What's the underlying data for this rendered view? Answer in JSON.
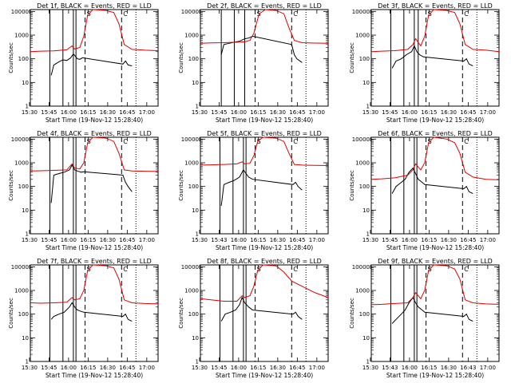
{
  "figure": {
    "background": "#ffffff",
    "events_color": "#000000",
    "lld_color": "#e00000"
  },
  "chart_data": [
    {
      "type": "line",
      "title": "Det 1f, BLACK = Events, RED = LLD",
      "xlabel": "Start Time (19-Nov-12 15:28:40)",
      "ylabel": "Counts/sec",
      "xticklabels": [
        "15:30",
        "15:45",
        "16:00",
        "16:15",
        "16:30",
        "16:45",
        "17:00"
      ],
      "yticklabels": [
        "1",
        "10",
        "100",
        "1000",
        "10000"
      ],
      "xlim_min": [
        2,
        100
      ],
      "ylim": [
        1,
        12000
      ],
      "yscale": "log",
      "solid_markers_min": [
        17,
        27,
        35,
        37
      ],
      "dashed_markers_min": [
        44,
        72
      ],
      "dotted_markers_min": [
        83
      ],
      "markers_label": [
        "S",
        "C"
      ],
      "series": [
        {
          "name": "BLACK = Events",
          "color": "#000000",
          "x": [
            18,
            20,
            24,
            27,
            30,
            33,
            35,
            37,
            38,
            40,
            42,
            73,
            75,
            77,
            80
          ],
          "y": [
            20,
            55,
            75,
            90,
            85,
            110,
            160,
            120,
            100,
            95,
            110,
            60,
            80,
            55,
            50
          ]
        },
        {
          "name": "RED = LLD",
          "color": "#e00000",
          "x": [
            2,
            10,
            20,
            30,
            34,
            36,
            40,
            43,
            46,
            50,
            60,
            66,
            70,
            74,
            80,
            90,
            100
          ],
          "y": [
            200,
            210,
            215,
            240,
            350,
            260,
            300,
            900,
            7000,
            12000,
            11000,
            9000,
            3000,
            400,
            250,
            230,
            220
          ]
        }
      ]
    },
    {
      "type": "line",
      "title": "Det 2f, BLACK = Events, RED = LLD",
      "xlabel": "Start Time (19-Nov-12 15:28:40)",
      "ylabel": "Counts/sec",
      "xticklabels": [
        "15:30",
        "15:45",
        "16:00",
        "16:15",
        "16:30",
        "16:45",
        "17:00"
      ],
      "yticklabels": [
        "1",
        "10",
        "100",
        "1000",
        "10000"
      ],
      "xlim_min": [
        2,
        100
      ],
      "ylim": [
        1,
        12000
      ],
      "yscale": "log",
      "solid_markers_min": [
        18,
        28,
        36
      ],
      "dashed_markers_min": [
        44,
        72
      ],
      "dotted_markers_min": [
        83
      ],
      "markers_label": [
        "S",
        "C"
      ],
      "series": [
        {
          "name": "BLACK = Events",
          "color": "#000000",
          "x": [
            18,
            20,
            24,
            28,
            32,
            36,
            39,
            42,
            72,
            74,
            76,
            80
          ],
          "y": [
            150,
            400,
            450,
            500,
            550,
            700,
            750,
            900,
            400,
            150,
            100,
            70
          ]
        },
        {
          "name": "RED = LLD",
          "color": "#e00000",
          "x": [
            2,
            10,
            20,
            30,
            36,
            40,
            43,
            47,
            52,
            60,
            66,
            70,
            74,
            80,
            90,
            100
          ],
          "y": [
            450,
            470,
            480,
            500,
            520,
            600,
            1200,
            8000,
            12000,
            11000,
            8000,
            2000,
            600,
            480,
            460,
            450
          ]
        }
      ]
    },
    {
      "type": "line",
      "title": "Det 3f, BLACK = Events, RED = LLD",
      "xlabel": "Start Time (19-Nov-12 15:28:40)",
      "ylabel": "Counts/sec",
      "xticklabels": [
        "15:30",
        "15:45",
        "16:00",
        "16:15",
        "16:30",
        "16:45",
        "17:00"
      ],
      "yticklabels": [
        "1",
        "10",
        "100",
        "1000",
        "10000"
      ],
      "xlim_min": [
        2,
        100
      ],
      "ylim": [
        1,
        12000
      ],
      "yscale": "log",
      "solid_markers_min": [
        17,
        27,
        35,
        38
      ],
      "dashed_markers_min": [
        44,
        72
      ],
      "dotted_markers_min": [
        83
      ],
      "markers_label": [
        "S",
        "C"
      ],
      "series": [
        {
          "name": "BLACK = Events",
          "color": "#000000",
          "x": [
            18,
            21,
            25,
            29,
            33,
            35,
            37,
            39,
            42,
            73,
            75,
            77,
            80
          ],
          "y": [
            40,
            80,
            100,
            150,
            200,
            350,
            200,
            150,
            120,
            80,
            100,
            60,
            50
          ]
        },
        {
          "name": "RED = LLD",
          "color": "#e00000",
          "x": [
            2,
            10,
            20,
            30,
            34,
            36,
            40,
            43,
            46,
            50,
            60,
            66,
            70,
            74,
            80,
            90,
            100
          ],
          "y": [
            200,
            210,
            220,
            250,
            400,
            700,
            350,
            900,
            7000,
            12000,
            11000,
            9000,
            3000,
            400,
            250,
            230,
            200
          ]
        }
      ]
    },
    {
      "type": "line",
      "title": "Det 4f, BLACK = Events, RED = LLD",
      "xlabel": "Start Time (19-Nov-12 15:28:40)",
      "ylabel": "Counts/sec",
      "xticklabels": [
        "15:30",
        "15:45",
        "16:00",
        "16:15",
        "16:30",
        "16:45",
        "17:00"
      ],
      "yticklabels": [
        "1",
        "10",
        "100",
        "1000",
        "10000"
      ],
      "xlim_min": [
        2,
        100
      ],
      "ylim": [
        1,
        12000
      ],
      "yscale": "log",
      "solid_markers_min": [
        17,
        27,
        35,
        37
      ],
      "dashed_markers_min": [
        44,
        72
      ],
      "dotted_markers_min": [
        83
      ],
      "markers_label": [
        "S",
        "C"
      ],
      "series": [
        {
          "name": "BLACK = Events",
          "color": "#000000",
          "x": [
            18,
            20,
            24,
            28,
            32,
            34,
            36,
            38,
            41,
            43,
            73,
            75,
            77,
            80
          ],
          "y": [
            20,
            300,
            350,
            400,
            500,
            800,
            500,
            450,
            400,
            420,
            300,
            150,
            100,
            60
          ]
        },
        {
          "name": "RED = LLD",
          "color": "#e00000",
          "x": [
            2,
            10,
            20,
            30,
            34,
            36,
            40,
            43,
            46,
            50,
            60,
            66,
            70,
            74,
            80,
            90,
            100
          ],
          "y": [
            450,
            460,
            480,
            500,
            900,
            600,
            550,
            1000,
            7000,
            12000,
            11000,
            8000,
            2500,
            500,
            450,
            440,
            430
          ]
        }
      ]
    },
    {
      "type": "line",
      "title": "Det 5f, BLACK = Events, RED = LLD",
      "xlabel": "Start Time (19-Nov-12 15:28:40)",
      "ylabel": "Counts/sec",
      "xticklabels": [
        "15:30",
        "15:43",
        "16:00",
        "16:15",
        "16:30",
        "16:45",
        "17:00"
      ],
      "yticklabels": [
        "1",
        "10",
        "100",
        "1000",
        "10000"
      ],
      "xlim_min": [
        2,
        100
      ],
      "ylim": [
        1,
        12000
      ],
      "yscale": "log",
      "solid_markers_min": [
        17,
        27,
        35,
        37
      ],
      "dashed_markers_min": [
        44,
        72
      ],
      "dotted_markers_min": [
        83
      ],
      "markers_label": [
        "S",
        "C"
      ],
      "series": [
        {
          "name": "BLACK = Events",
          "color": "#000000",
          "x": [
            18,
            20,
            24,
            28,
            32,
            35,
            37,
            39,
            42,
            73,
            75,
            77,
            80
          ],
          "y": [
            15,
            120,
            150,
            180,
            250,
            500,
            350,
            250,
            200,
            120,
            150,
            100,
            70
          ]
        },
        {
          "name": "RED = LLD",
          "color": "#e00000",
          "x": [
            2,
            10,
            20,
            30,
            34,
            36,
            40,
            43,
            46,
            50,
            60,
            66,
            70,
            74,
            80,
            90,
            100
          ],
          "y": [
            800,
            820,
            850,
            900,
            1100,
            900,
            950,
            2000,
            8000,
            12000,
            11000,
            8000,
            2500,
            850,
            800,
            780,
            760
          ]
        }
      ]
    },
    {
      "type": "line",
      "title": "Det 6f, BLACK = Events, RED = LLD",
      "xlabel": "Start Time (19-Nov-12 15:28:40)",
      "ylabel": "Counts/sec",
      "xticklabels": [
        "15:30",
        "15:45",
        "16:00",
        "16:15",
        "16:30",
        "16:45",
        "17:00"
      ],
      "yticklabels": [
        "1",
        "10",
        "100",
        "1000",
        "10000"
      ],
      "xlim_min": [
        2,
        100
      ],
      "ylim": [
        1,
        12000
      ],
      "yscale": "log",
      "solid_markers_min": [
        17,
        27,
        35,
        37
      ],
      "dashed_markers_min": [
        44,
        72
      ],
      "dotted_markers_min": [
        83
      ],
      "markers_label": [
        "S",
        "C"
      ],
      "series": [
        {
          "name": "BLACK = Events",
          "color": "#000000",
          "x": [
            18,
            21,
            25,
            28,
            31,
            34,
            36,
            38,
            41,
            43,
            73,
            75,
            77,
            80
          ],
          "y": [
            50,
            100,
            150,
            200,
            400,
            600,
            350,
            200,
            150,
            120,
            80,
            100,
            60,
            50
          ]
        },
        {
          "name": "RED = LLD",
          "color": "#e00000",
          "x": [
            2,
            10,
            20,
            30,
            34,
            36,
            40,
            43,
            46,
            50,
            60,
            66,
            70,
            74,
            80,
            90,
            100
          ],
          "y": [
            200,
            210,
            230,
            300,
            500,
            900,
            500,
            1000,
            7000,
            12000,
            10000,
            7000,
            2500,
            400,
            250,
            200,
            190
          ]
        }
      ]
    },
    {
      "type": "line",
      "title": "Det 7f, BLACK = Events, RED = LLD",
      "xlabel": "Start Time (19-Nov-12 15:28:40)",
      "ylabel": "Counts/sec",
      "xticklabels": [
        "15:30",
        "15:45",
        "16:00",
        "16:15",
        "16:30",
        "16:45",
        "17:00"
      ],
      "yticklabels": [
        "1",
        "10",
        "100",
        "1000",
        "10000"
      ],
      "xlim_min": [
        2,
        100
      ],
      "ylim": [
        1,
        12000
      ],
      "yscale": "log",
      "solid_markers_min": [
        17,
        27,
        35,
        37
      ],
      "dashed_markers_min": [
        44,
        72
      ],
      "dotted_markers_min": [
        83
      ],
      "markers_label": [
        "S",
        "C"
      ],
      "series": [
        {
          "name": "BLACK = Events",
          "color": "#000000",
          "x": [
            18,
            20,
            24,
            28,
            32,
            34,
            36,
            38,
            41,
            43,
            73,
            75,
            77,
            80
          ],
          "y": [
            60,
            80,
            100,
            120,
            200,
            300,
            200,
            150,
            130,
            120,
            80,
            100,
            60,
            50
          ]
        },
        {
          "name": "RED = LLD",
          "color": "#e00000",
          "x": [
            2,
            10,
            20,
            30,
            34,
            36,
            40,
            43,
            46,
            50,
            60,
            66,
            70,
            74,
            80,
            90,
            100
          ],
          "y": [
            300,
            290,
            300,
            320,
            500,
            400,
            450,
            1000,
            7000,
            12000,
            11000,
            9000,
            3000,
            400,
            300,
            280,
            270
          ]
        }
      ]
    },
    {
      "type": "line",
      "title": "Det 8f, BLACK = Events, RED = LLD",
      "xlabel": "Start Time (19-Nov-12 15:28:40)",
      "ylabel": "Counts/sec",
      "xticklabels": [
        "15:30",
        "15:45",
        "16:00",
        "16:15",
        "16:30",
        "16:45",
        "17:00"
      ],
      "yticklabels": [
        "1",
        "10",
        "100",
        "1000",
        "10000"
      ],
      "xlim_min": [
        2,
        100
      ],
      "ylim": [
        1,
        12000
      ],
      "yscale": "log",
      "solid_markers_min": [
        17,
        27,
        35,
        37
      ],
      "dashed_markers_min": [
        44,
        72
      ],
      "dotted_markers_min": [
        83
      ],
      "markers_label": [
        "S",
        "C"
      ],
      "series": [
        {
          "name": "BLACK = Events",
          "color": "#000000",
          "x": [
            18,
            21,
            25,
            29,
            32,
            34,
            36,
            39,
            42,
            73,
            75,
            77,
            80
          ],
          "y": [
            50,
            100,
            120,
            150,
            250,
            500,
            300,
            200,
            150,
            100,
            120,
            80,
            60
          ]
        },
        {
          "name": "RED = LLD",
          "color": "#e00000",
          "x": [
            2,
            10,
            20,
            30,
            34,
            36,
            40,
            43,
            46,
            50,
            60,
            66,
            72,
            80,
            90,
            100
          ],
          "y": [
            450,
            400,
            350,
            350,
            600,
            500,
            600,
            1500,
            7000,
            12000,
            11000,
            6000,
            2500,
            1500,
            800,
            500
          ]
        }
      ]
    },
    {
      "type": "line",
      "title": "Det 9f, BLACK = Events, RED = LLD",
      "xlabel": "Start Time (19-Nov-12 15:28:40)",
      "ylabel": "Counts/sec",
      "xticklabels": [
        "15:30",
        "15:43",
        "16:00",
        "16:15",
        "16:30",
        "16:43",
        "17:00"
      ],
      "yticklabels": [
        "1",
        "10",
        "100",
        "1000",
        "10000"
      ],
      "xlim_min": [
        2,
        100
      ],
      "ylim": [
        1,
        12000
      ],
      "yscale": "log",
      "solid_markers_min": [
        17,
        27,
        35,
        37
      ],
      "dashed_markers_min": [
        44,
        72
      ],
      "dotted_markers_min": [
        83
      ],
      "markers_label": [
        "S",
        "C"
      ],
      "series": [
        {
          "name": "BLACK = Events",
          "color": "#000000",
          "x": [
            18,
            21,
            25,
            28,
            31,
            34,
            36,
            38,
            41,
            43,
            73,
            75,
            77,
            80
          ],
          "y": [
            40,
            60,
            100,
            150,
            300,
            500,
            300,
            200,
            150,
            120,
            80,
            100,
            60,
            50
          ]
        },
        {
          "name": "RED = LLD",
          "color": "#e00000",
          "x": [
            2,
            10,
            20,
            30,
            34,
            36,
            40,
            43,
            46,
            50,
            60,
            66,
            70,
            74,
            80,
            90,
            100
          ],
          "y": [
            250,
            260,
            280,
            300,
            500,
            800,
            450,
            1000,
            7000,
            12000,
            11000,
            8000,
            3000,
            400,
            300,
            270,
            260
          ]
        }
      ]
    }
  ]
}
